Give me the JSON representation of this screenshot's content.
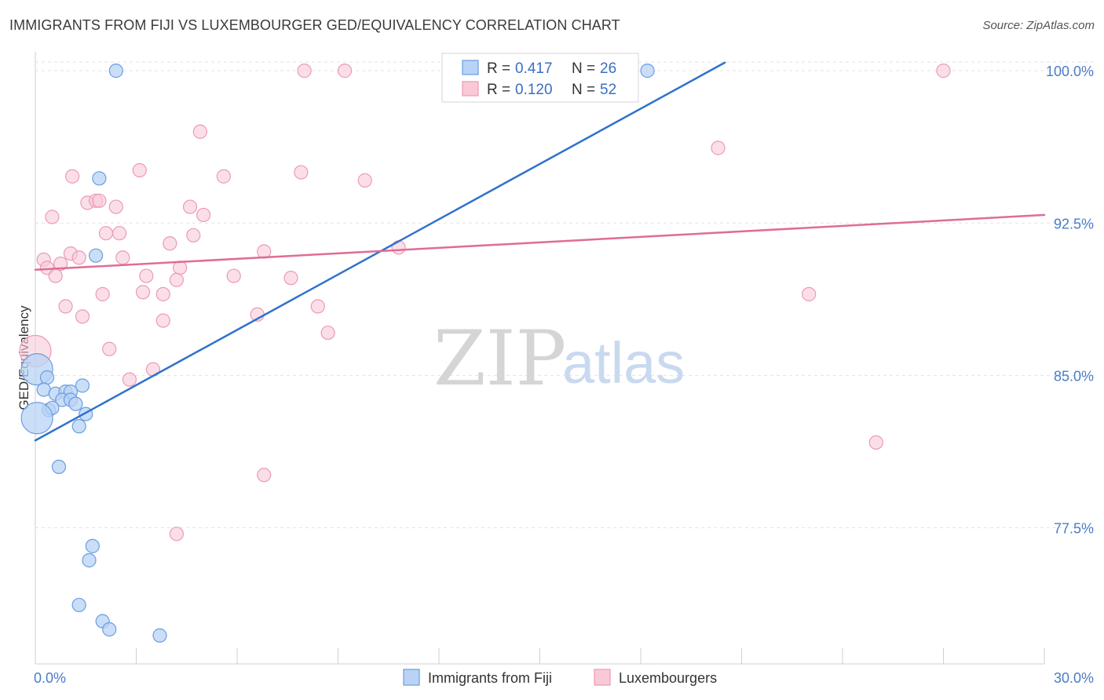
{
  "header": {
    "title": "IMMIGRANTS FROM FIJI VS LUXEMBOURGER GED/EQUIVALENCY CORRELATION CHART",
    "source": "Source: ZipAtlas.com"
  },
  "watermark": {
    "zip": "ZIP",
    "atlas": "atlas"
  },
  "colors": {
    "fiji_fill": "#b8d3f5",
    "fiji_stroke": "#6b9de0",
    "fiji_line": "#2f72cc",
    "lux_fill": "#f9c9d8",
    "lux_stroke": "#ec9ab5",
    "lux_line": "#e06c96",
    "tick_text": "#4a7cc8",
    "grid": "#e3e3e3"
  },
  "chart_data": {
    "type": "scatter",
    "title": "IMMIGRANTS FROM FIJI VS LUXEMBOURGER GED/EQUIVALENCY CORRELATION CHART",
    "xlabel": "",
    "ylabel": "GED/Equivalency",
    "xlim": [
      0,
      30
    ],
    "ylim": [
      70.8,
      100.7
    ],
    "x_tick_labels": [
      {
        "value": 0,
        "label": "0.0%"
      },
      {
        "value": 30,
        "label": "30.0%"
      }
    ],
    "y_ticks": [
      {
        "value": 100.0,
        "label": "100.0%"
      },
      {
        "value": 92.5,
        "label": "92.5%"
      },
      {
        "value": 85.0,
        "label": "85.0%"
      },
      {
        "value": 77.5,
        "label": "77.5%"
      }
    ],
    "legend": [
      {
        "series": "Immigrants from Fiji",
        "r_label": "R =",
        "r": "0.417",
        "n_label": "N =",
        "n": "26"
      },
      {
        "series": "Luxembourgers",
        "r_label": "R =",
        "r": "0.120",
        "n_label": "N =",
        "n": "52"
      }
    ],
    "series": [
      {
        "name": "Immigrants from Fiji",
        "trend": {
          "x": [
            0.0,
            20.5
          ],
          "y": [
            81.8,
            100.4
          ]
        },
        "points": [
          {
            "x": 2.4,
            "y": 100.0
          },
          {
            "x": 18.2,
            "y": 100.0
          },
          {
            "x": 1.9,
            "y": 94.7
          },
          {
            "x": 1.8,
            "y": 90.9
          },
          {
            "x": 0.05,
            "y": 85.3,
            "big": true
          },
          {
            "x": 0.35,
            "y": 84.9
          },
          {
            "x": 0.25,
            "y": 84.3
          },
          {
            "x": 0.6,
            "y": 84.1
          },
          {
            "x": 0.9,
            "y": 84.2
          },
          {
            "x": 1.05,
            "y": 84.2
          },
          {
            "x": 1.4,
            "y": 84.5
          },
          {
            "x": 0.8,
            "y": 83.8
          },
          {
            "x": 1.05,
            "y": 83.8
          },
          {
            "x": 1.2,
            "y": 83.6
          },
          {
            "x": 0.4,
            "y": 83.3
          },
          {
            "x": 0.5,
            "y": 83.4
          },
          {
            "x": 1.5,
            "y": 83.1
          },
          {
            "x": 0.05,
            "y": 82.9,
            "big": true
          },
          {
            "x": 1.3,
            "y": 82.5
          },
          {
            "x": 0.7,
            "y": 80.5
          },
          {
            "x": 1.7,
            "y": 76.6
          },
          {
            "x": 1.6,
            "y": 75.9
          },
          {
            "x": 1.3,
            "y": 73.7
          },
          {
            "x": 2.0,
            "y": 72.9
          },
          {
            "x": 2.2,
            "y": 72.5
          },
          {
            "x": 3.7,
            "y": 72.2
          }
        ]
      },
      {
        "name": "Luxembourgers",
        "trend": {
          "x": [
            0.0,
            30.0
          ],
          "y": [
            90.2,
            92.9
          ]
        },
        "points": [
          {
            "x": 8.0,
            "y": 100.0
          },
          {
            "x": 9.2,
            "y": 100.0
          },
          {
            "x": 27.0,
            "y": 100.0
          },
          {
            "x": 4.9,
            "y": 97.0
          },
          {
            "x": 20.3,
            "y": 96.2
          },
          {
            "x": 3.1,
            "y": 95.1
          },
          {
            "x": 7.9,
            "y": 95.0
          },
          {
            "x": 1.1,
            "y": 94.8
          },
          {
            "x": 5.6,
            "y": 94.8
          },
          {
            "x": 9.8,
            "y": 94.6
          },
          {
            "x": 1.55,
            "y": 93.5
          },
          {
            "x": 1.8,
            "y": 93.6
          },
          {
            "x": 1.9,
            "y": 93.6
          },
          {
            "x": 2.4,
            "y": 93.3
          },
          {
            "x": 4.6,
            "y": 93.3
          },
          {
            "x": 5.0,
            "y": 92.9
          },
          {
            "x": 0.5,
            "y": 92.8
          },
          {
            "x": 2.1,
            "y": 92.0
          },
          {
            "x": 2.5,
            "y": 92.0
          },
          {
            "x": 4.7,
            "y": 91.9
          },
          {
            "x": 4.0,
            "y": 91.5
          },
          {
            "x": 10.8,
            "y": 91.3
          },
          {
            "x": 6.8,
            "y": 91.1
          },
          {
            "x": 1.05,
            "y": 91.0
          },
          {
            "x": 1.3,
            "y": 90.8
          },
          {
            "x": 2.6,
            "y": 90.8
          },
          {
            "x": 0.25,
            "y": 90.7
          },
          {
            "x": 0.75,
            "y": 90.5
          },
          {
            "x": 0.35,
            "y": 90.3
          },
          {
            "x": 4.3,
            "y": 90.3
          },
          {
            "x": 0.6,
            "y": 89.9
          },
          {
            "x": 3.3,
            "y": 89.9
          },
          {
            "x": 5.9,
            "y": 89.9
          },
          {
            "x": 7.6,
            "y": 89.8
          },
          {
            "x": 4.2,
            "y": 89.7
          },
          {
            "x": 3.2,
            "y": 89.1
          },
          {
            "x": 2.0,
            "y": 89.0
          },
          {
            "x": 3.8,
            "y": 89.0
          },
          {
            "x": 23.0,
            "y": 89.0
          },
          {
            "x": 0.9,
            "y": 88.4
          },
          {
            "x": 8.4,
            "y": 88.4
          },
          {
            "x": 6.6,
            "y": 88.0
          },
          {
            "x": 1.4,
            "y": 87.9
          },
          {
            "x": 3.8,
            "y": 87.7
          },
          {
            "x": 8.7,
            "y": 87.1
          },
          {
            "x": 0.0,
            "y": 86.2,
            "big": true
          },
          {
            "x": 2.2,
            "y": 86.3
          },
          {
            "x": 3.5,
            "y": 85.3
          },
          {
            "x": 2.8,
            "y": 84.8
          },
          {
            "x": 25.0,
            "y": 81.7
          },
          {
            "x": 6.8,
            "y": 80.1
          },
          {
            "x": 4.2,
            "y": 77.2
          }
        ]
      }
    ]
  }
}
